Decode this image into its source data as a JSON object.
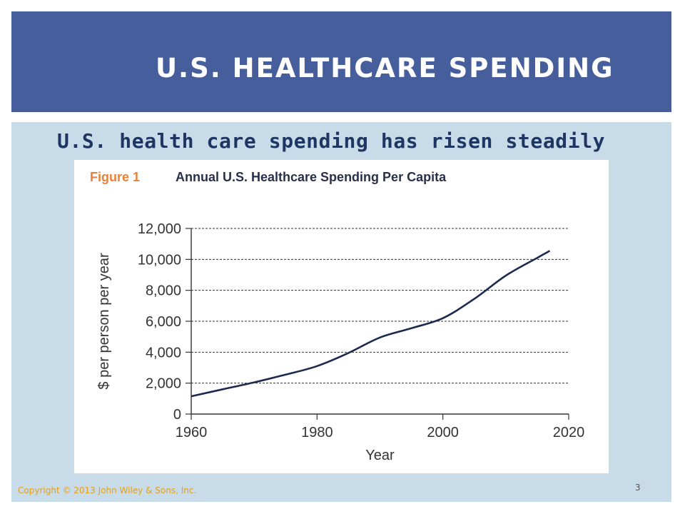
{
  "slide": {
    "title": "U.S. HEALTHCARE SPENDING",
    "subtitle": "U.S. health care spending has risen steadily",
    "copyright": "Copyright © 2013 John Wiley & Sons, Inc.",
    "page_number": "3"
  },
  "colors": {
    "title_bar": "#465e9c",
    "content_panel": "#c8dbe9",
    "subtitle_text": "#1f3663",
    "figure_label": "#e8813a",
    "figure_title": "#2a2f4a",
    "line": "#1b2a4e",
    "copyright": "#e2a020"
  },
  "chart_data": {
    "type": "line",
    "figure_label": "Figure 1",
    "title": "Annual U.S. Healthcare Spending Per Capita",
    "xlabel": "Year",
    "ylabel": "$ per person per year",
    "xlim": [
      1960,
      2020
    ],
    "ylim": [
      0,
      12000
    ],
    "xticks": [
      1960,
      1980,
      2000,
      2020
    ],
    "yticks": [
      0,
      2000,
      4000,
      6000,
      8000,
      10000,
      12000
    ],
    "ytick_labels": [
      "0",
      "2,000",
      "4,000",
      "6,000",
      "8,000",
      "10,000",
      "12,000"
    ],
    "grid": "horizontal dashed",
    "series": [
      {
        "x": [
          1960,
          1965,
          1970,
          1975,
          1980,
          1985,
          1990,
          1995,
          2000,
          2005,
          2010,
          2015,
          2017
        ],
        "y": [
          1150,
          1600,
          2050,
          2550,
          3100,
          3950,
          4950,
          5550,
          6200,
          7450,
          8950,
          10100,
          10550
        ]
      }
    ]
  }
}
